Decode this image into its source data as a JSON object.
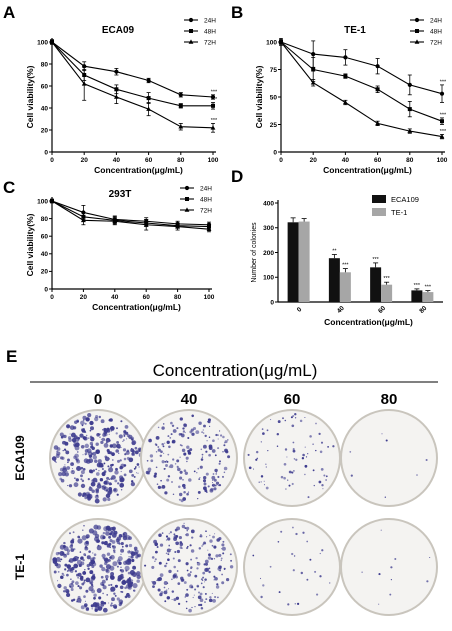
{
  "panels": {
    "A": {
      "letter": "A"
    },
    "B": {
      "letter": "B"
    },
    "C": {
      "letter": "C"
    },
    "D": {
      "letter": "D"
    },
    "E": {
      "letter": "E"
    }
  },
  "chart_data": [
    {
      "id": "A",
      "type": "line",
      "title": "ECA09",
      "xlabel": "Concentration(μg/mL)",
      "ylabel": "Cell viability(%)",
      "x": [
        0,
        20,
        40,
        60,
        80,
        100
      ],
      "xlim": [
        0,
        100
      ],
      "ylim": [
        0,
        100
      ],
      "xticks": [
        "0",
        "20",
        "40",
        "60",
        "80",
        "100"
      ],
      "yticks": [
        "0",
        "20",
        "40",
        "60",
        "80",
        "100"
      ],
      "legend_position": "top-right",
      "series": [
        {
          "name": "24H",
          "marker": "circle",
          "values": [
            100,
            78,
            73,
            65,
            52,
            50
          ],
          "errors": [
            2,
            4,
            3,
            2,
            2,
            2
          ],
          "sig": [
            "",
            "",
            "",
            "",
            "",
            "***"
          ]
        },
        {
          "name": "48H",
          "marker": "square",
          "values": [
            100,
            70,
            57,
            49,
            42,
            42
          ],
          "errors": [
            2,
            5,
            4,
            5,
            2,
            3
          ],
          "sig": [
            "",
            "",
            "",
            "",
            "",
            "***"
          ]
        },
        {
          "name": "72H",
          "marker": "triangle",
          "values": [
            100,
            62,
            50,
            39,
            23,
            22
          ],
          "errors": [
            2,
            15,
            6,
            6,
            3,
            4
          ],
          "sig": [
            "",
            "",
            "",
            "",
            "",
            "***"
          ]
        }
      ]
    },
    {
      "id": "B",
      "type": "line",
      "title": "TE-1",
      "xlabel": "Concentration(μg/mL)",
      "ylabel": "Cell viability(%)",
      "x": [
        0,
        20,
        40,
        60,
        80,
        100
      ],
      "xlim": [
        0,
        100
      ],
      "ylim": [
        0,
        100
      ],
      "xticks": [
        "0",
        "20",
        "40",
        "60",
        "80",
        "100"
      ],
      "yticks": [
        "0",
        "25",
        "50",
        "75",
        "100"
      ],
      "legend_position": "top-right",
      "series": [
        {
          "name": "24H",
          "marker": "circle",
          "values": [
            100,
            89,
            86,
            78,
            61,
            53
          ],
          "errors": [
            3,
            12,
            7,
            7,
            9,
            8
          ],
          "sig": [
            "",
            "",
            "",
            "",
            "",
            "***"
          ]
        },
        {
          "name": "48H",
          "marker": "square",
          "values": [
            100,
            75,
            69,
            57,
            39,
            28
          ],
          "errors": [
            2,
            11,
            2,
            3,
            7,
            3
          ],
          "sig": [
            "",
            "",
            "",
            "",
            "",
            "***"
          ]
        },
        {
          "name": "72H",
          "marker": "triangle",
          "values": [
            100,
            63,
            45,
            26,
            19,
            14
          ],
          "errors": [
            2,
            3,
            2,
            2,
            2,
            2
          ],
          "sig": [
            "",
            "",
            "",
            "",
            "",
            "***"
          ]
        }
      ]
    },
    {
      "id": "C",
      "type": "line",
      "title": "293T",
      "xlabel": "Concentration(μg/mL)",
      "ylabel": "Cell viability(%)",
      "x": [
        0,
        20,
        40,
        60,
        80,
        100
      ],
      "xlim": [
        0,
        100
      ],
      "ylim": [
        0,
        100
      ],
      "xticks": [
        "0",
        "20",
        "40",
        "60",
        "80",
        "100"
      ],
      "yticks": [
        "0",
        "20",
        "40",
        "60",
        "80",
        "100"
      ],
      "legend_position": "top-right",
      "series": [
        {
          "name": "24H",
          "marker": "circle",
          "values": [
            100,
            87,
            79,
            77,
            74,
            73
          ],
          "errors": [
            2,
            8,
            4,
            4,
            3,
            3
          ],
          "sig": [
            "",
            "",
            "",
            "",
            "",
            ""
          ]
        },
        {
          "name": "48H",
          "marker": "square",
          "values": [
            100,
            82,
            78,
            75,
            72,
            71
          ],
          "errors": [
            2,
            5,
            4,
            4,
            3,
            3
          ],
          "sig": [
            "",
            "",
            "",
            "",
            "",
            ""
          ]
        },
        {
          "name": "72H",
          "marker": "triangle",
          "values": [
            100,
            78,
            77,
            73,
            71,
            68
          ],
          "errors": [
            2,
            5,
            4,
            6,
            4,
            3
          ],
          "sig": [
            "",
            "",
            "",
            "",
            "",
            ""
          ]
        }
      ]
    },
    {
      "id": "D",
      "type": "bar",
      "title": "",
      "xlabel": "Concentration(μg/mL)",
      "ylabel": "Number of colonies",
      "categories": [
        "0",
        "40",
        "60",
        "80"
      ],
      "ylim": [
        0,
        400
      ],
      "yticks": [
        "0",
        "100",
        "200",
        "300",
        "400"
      ],
      "legend_position": "top-right",
      "series": [
        {
          "name": "ECA109",
          "color": "#111111",
          "values": [
            322,
            177,
            140,
            47
          ],
          "errors": [
            18,
            15,
            18,
            6
          ],
          "sig": [
            "",
            "**",
            "***",
            "***"
          ]
        },
        {
          "name": "TE-1",
          "color": "#a6a6a6",
          "values": [
            325,
            120,
            70,
            40
          ],
          "errors": [
            12,
            15,
            10,
            6
          ],
          "sig": [
            "",
            "***",
            "***",
            "***"
          ]
        }
      ]
    }
  ],
  "colony_panel": {
    "title": "Concentration(μg/mL)",
    "columns": [
      "0",
      "40",
      "60",
      "80"
    ],
    "rows": [
      "ECA109",
      "TE-1"
    ],
    "colony_density": [
      [
        0.95,
        0.55,
        0.22,
        0.02
      ],
      [
        1.0,
        0.6,
        0.08,
        0.03
      ]
    ],
    "colony_color": "#3d3b8e",
    "dish_color": "#f4f3f1",
    "rim_color": "#c9c5bd"
  }
}
